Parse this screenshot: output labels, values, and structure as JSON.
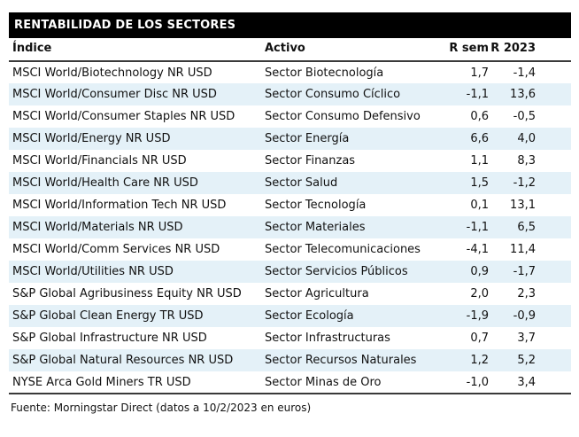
{
  "title": "RENTABILIDAD DE LOS SECTORES",
  "table": {
    "columns": [
      "Índice",
      "Activo",
      "R sem",
      "R 2023"
    ],
    "rows": [
      [
        "MSCI World/Biotechnology NR USD",
        "Sector Biotecnología",
        "1,7",
        "-1,4"
      ],
      [
        "MSCI World/Consumer Disc NR USD",
        "Sector Consumo Cíclico",
        "-1,1",
        "13,6"
      ],
      [
        "MSCI World/Consumer Staples NR USD",
        "Sector Consumo Defensivo",
        "0,6",
        "-0,5"
      ],
      [
        "MSCI World/Energy NR USD",
        "Sector Energía",
        "6,6",
        "4,0"
      ],
      [
        "MSCI World/Financials NR USD",
        "Sector Finanzas",
        "1,1",
        "8,3"
      ],
      [
        "MSCI World/Health Care NR USD",
        "Sector Salud",
        "1,5",
        "-1,2"
      ],
      [
        "MSCI World/Information Tech NR USD",
        "Sector Tecnología",
        "0,1",
        "13,1"
      ],
      [
        "MSCI World/Materials NR USD",
        "Sector Materiales",
        "-1,1",
        "6,5"
      ],
      [
        "MSCI World/Comm Services NR USD",
        "Sector Telecomunicaciones",
        "-4,1",
        "11,4"
      ],
      [
        "MSCI World/Utilities NR USD",
        "Sector Servicios Públicos",
        "0,9",
        "-1,7"
      ],
      [
        "S&P Global Agribusiness Equity NR USD",
        "Sector Agricultura",
        "2,0",
        "2,3"
      ],
      [
        "S&P Global Clean Energy TR USD",
        "Sector Ecología",
        "-1,9",
        "-0,9"
      ],
      [
        "S&P Global Infrastructure NR USD",
        "Sector Infrastructuras",
        "0,7",
        "3,7"
      ],
      [
        "S&P Global Natural Resources NR USD",
        "Sector Recursos Naturales",
        "1,2",
        "5,2"
      ],
      [
        "NYSE Arca Gold Miners TR USD",
        "Sector Minas de Oro",
        "-1,0",
        "3,4"
      ]
    ]
  },
  "footer": "Fuente: Morningstar Direct (datos a 10/2/2023 en euros)",
  "colors": {
    "title_bg": "#000000",
    "title_text": "#ffffff",
    "stripe": "#e4f1f8",
    "rule": "#3a3a3a",
    "text": "#111111"
  }
}
